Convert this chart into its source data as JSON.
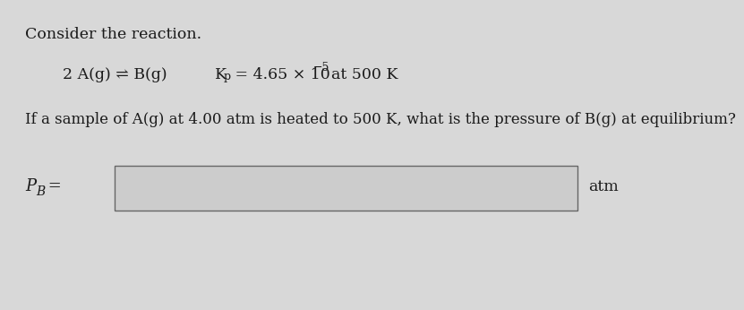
{
  "background_color": "#d8d8d8",
  "inner_bg": "#d0d0d0",
  "box_face": "#d4d4d4",
  "text_color": "#1a1a1a",
  "title_line": "Consider the reaction.",
  "question_line": "If a sample of A(g) at 4.00 atm is heated to 500 K, what is the pressure of B(g) at equilibrium?",
  "answer_unit": "atm",
  "font_size_title": 12.5,
  "font_size_reaction": 12.5,
  "font_size_question": 12.0,
  "font_size_answer": 13.0,
  "font_size_sub": 9.0,
  "font_size_super": 9.0
}
